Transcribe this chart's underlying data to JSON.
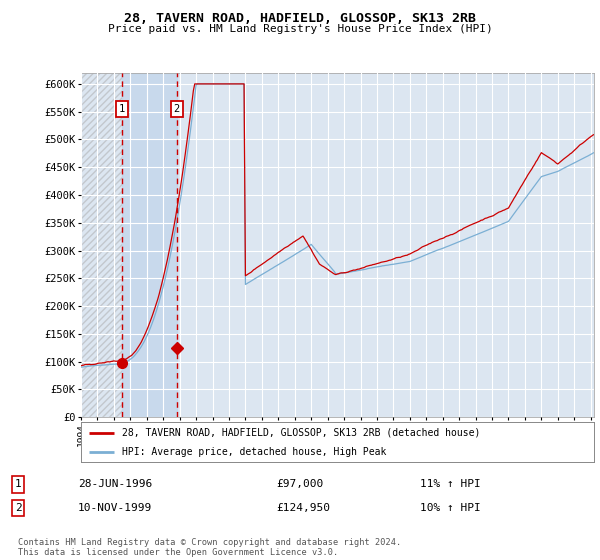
{
  "title": "28, TAVERN ROAD, HADFIELD, GLOSSOP, SK13 2RB",
  "subtitle": "Price paid vs. HM Land Registry's House Price Index (HPI)",
  "ylabel_ticks": [
    "£0",
    "£50K",
    "£100K",
    "£150K",
    "£200K",
    "£250K",
    "£300K",
    "£350K",
    "£400K",
    "£450K",
    "£500K",
    "£550K",
    "£600K"
  ],
  "ytick_values": [
    0,
    50000,
    100000,
    150000,
    200000,
    250000,
    300000,
    350000,
    400000,
    450000,
    500000,
    550000,
    600000
  ],
  "hpi_line_color": "#7bafd4",
  "price_line_color": "#cc0000",
  "plot_bg_color": "#dce6f1",
  "grid_color": "#ffffff",
  "sale1_date": "28-JUN-1996",
  "sale1_price": 97000,
  "sale2_date": "10-NOV-1999",
  "sale2_price": 124950,
  "sale1_hpi_pct": "11% ↑ HPI",
  "sale2_hpi_pct": "10% ↑ HPI",
  "legend1_label": "28, TAVERN ROAD, HADFIELD, GLOSSOP, SK13 2RB (detached house)",
  "legend2_label": "HPI: Average price, detached house, High Peak",
  "footer": "Contains HM Land Registry data © Crown copyright and database right 2024.\nThis data is licensed under the Open Government Licence v3.0.",
  "sale1_x": 1996.5,
  "sale2_x": 1999.83,
  "xlim_left": 1994.0,
  "xlim_right": 2025.2,
  "ylim_top": 620000,
  "ylim_bottom": 0
}
